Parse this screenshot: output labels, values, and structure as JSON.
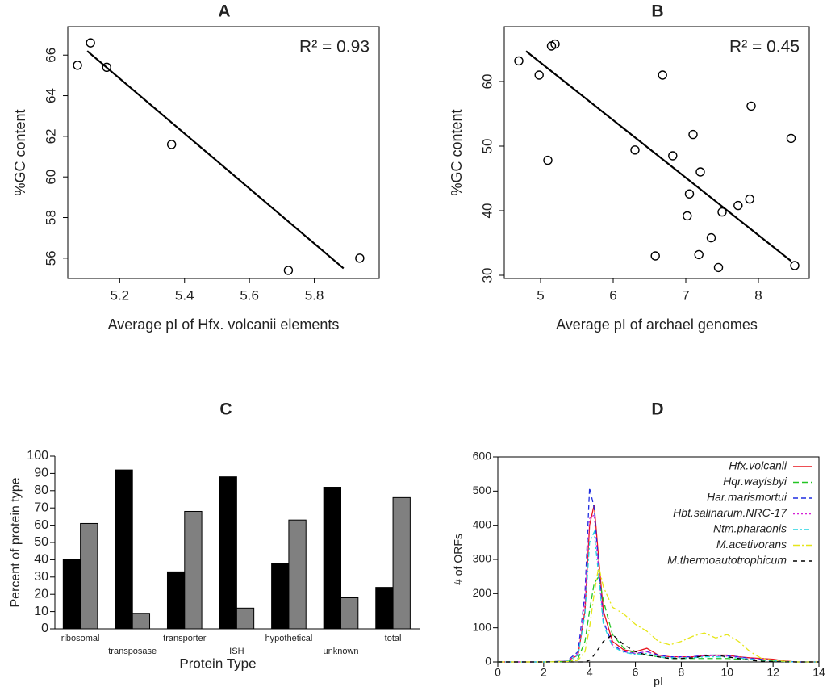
{
  "chart_data": [
    {
      "type": "scatter",
      "title": "A",
      "xlabel": "Average pI of Hfx. volcanii elements",
      "ylabel": "%GC content",
      "annotation": "R² = 0.93",
      "points": {
        "x": [
          5.07,
          5.11,
          5.16,
          5.36,
          5.72,
          5.94
        ],
        "y": [
          65.5,
          66.6,
          65.4,
          61.6,
          55.4,
          56.0
        ]
      },
      "fit": {
        "x": [
          5.1,
          5.89
        ],
        "y": [
          66.2,
          55.5
        ]
      },
      "xlim": [
        5.04,
        6.0
      ],
      "ylim": [
        55.0,
        67.4
      ],
      "xticks": [
        5.2,
        5.4,
        5.6,
        5.8
      ],
      "yticks": [
        56,
        58,
        60,
        62,
        64,
        66
      ],
      "color": "#000000"
    },
    {
      "type": "scatter",
      "title": "B",
      "xlabel": "Average pI of archael genomes",
      "ylabel": "%GC content",
      "annotation": "R² = 0.45",
      "points": {
        "x": [
          4.7,
          4.98,
          5.15,
          5.2,
          5.1,
          6.3,
          6.68,
          6.82,
          7.1,
          7.2,
          7.05,
          7.02,
          6.58,
          7.18,
          7.35,
          7.45,
          7.5,
          7.72,
          7.88,
          7.9,
          8.45,
          8.5
        ],
        "y": [
          63.2,
          61.0,
          65.5,
          65.8,
          47.8,
          49.4,
          61.0,
          48.5,
          51.8,
          46.0,
          42.6,
          39.2,
          33.0,
          33.2,
          35.8,
          31.2,
          39.8,
          40.8,
          41.8,
          56.2,
          51.2,
          31.5
        ]
      },
      "fit": {
        "x": [
          4.8,
          8.45
        ],
        "y": [
          64.7,
          32.2
        ]
      },
      "xlim": [
        4.5,
        8.7
      ],
      "ylim": [
        29.5,
        68.5
      ],
      "xticks": [
        5,
        6,
        7,
        8
      ],
      "yticks": [
        30,
        40,
        50,
        60
      ],
      "color": "#000000"
    },
    {
      "type": "bar",
      "title": "C",
      "xlabel": "Protein Type",
      "ylabel": "Percent of protein type",
      "categories": [
        "ribosomal",
        "transposase",
        "transporter",
        "ISH",
        "hypothetical",
        "unknown",
        "total"
      ],
      "series": [
        {
          "color": "#000000",
          "values": [
            40,
            92,
            33,
            88,
            38,
            82,
            24
          ]
        },
        {
          "color": "#808080",
          "values": [
            61,
            9,
            68,
            12,
            63,
            18,
            76
          ]
        }
      ],
      "ylim": [
        0,
        100
      ],
      "yticks": [
        0,
        10,
        20,
        30,
        40,
        50,
        60,
        70,
        80,
        90,
        100
      ]
    },
    {
      "type": "line",
      "title": "D",
      "xlabel": "pI",
      "ylabel": "# of ORFs",
      "legend": "top-right",
      "x": [
        0,
        2,
        3,
        3.5,
        3.8,
        4,
        4.2,
        4.4,
        4.6,
        5,
        5.5,
        6,
        6.5,
        7,
        7.5,
        8,
        8.5,
        9,
        9.5,
        10,
        10.5,
        11,
        11.5,
        12,
        12.5,
        13,
        14
      ],
      "series": [
        {
          "name": "Hfx.volcanii",
          "color": "#e8141c",
          "values": [
            0,
            0,
            2,
            20,
            150,
            400,
            460,
            300,
            150,
            60,
            35,
            30,
            40,
            20,
            15,
            15,
            15,
            18,
            20,
            20,
            15,
            12,
            10,
            8,
            3,
            0,
            0
          ]
        },
        {
          "name": "Hqr.waylsbyi",
          "color": "#22c522",
          "values": [
            0,
            0,
            1,
            10,
            60,
            150,
            230,
            250,
            180,
            80,
            40,
            25,
            20,
            15,
            10,
            10,
            10,
            10,
            10,
            10,
            8,
            6,
            5,
            3,
            1,
            0,
            0
          ]
        },
        {
          "name": "Har.marismortui",
          "color": "#1f2de0",
          "values": [
            0,
            0,
            2,
            30,
            200,
            510,
            450,
            280,
            120,
            50,
            30,
            25,
            30,
            20,
            15,
            15,
            15,
            20,
            20,
            18,
            15,
            10,
            8,
            5,
            2,
            0,
            0
          ]
        },
        {
          "name": "Hbt.salinarum.NRC-17",
          "color": "#d61fd6",
          "values": [
            0,
            0,
            2,
            25,
            180,
            420,
            430,
            260,
            120,
            50,
            30,
            25,
            30,
            18,
            15,
            15,
            15,
            18,
            18,
            17,
            14,
            10,
            8,
            5,
            2,
            0,
            0
          ]
        },
        {
          "name": "Ntm.pharaonis",
          "color": "#22d3e0",
          "values": [
            0,
            0,
            2,
            20,
            140,
            350,
            380,
            250,
            110,
            45,
            28,
            22,
            25,
            15,
            12,
            12,
            12,
            15,
            15,
            14,
            12,
            8,
            6,
            4,
            1,
            0,
            0
          ]
        },
        {
          "name": "M.acetivorans",
          "color": "#e6e61a",
          "values": [
            0,
            0,
            1,
            5,
            30,
            100,
            200,
            280,
            220,
            160,
            140,
            110,
            90,
            60,
            50,
            60,
            75,
            85,
            70,
            80,
            60,
            30,
            10,
            5,
            2,
            0,
            0
          ]
        },
        {
          "name": "M.thermoautotrophicum",
          "color": "#000000",
          "values": [
            0,
            0,
            0,
            0,
            0,
            5,
            20,
            40,
            60,
            80,
            50,
            30,
            20,
            15,
            10,
            10,
            12,
            18,
            20,
            15,
            10,
            5,
            2,
            1,
            0,
            0,
            0
          ]
        }
      ],
      "xlim": [
        0,
        14
      ],
      "ylim": [
        0,
        600
      ],
      "xticks": [
        0,
        2,
        4,
        6,
        8,
        10,
        12,
        14
      ],
      "yticks": [
        0,
        100,
        200,
        300,
        400,
        500,
        600
      ]
    }
  ]
}
